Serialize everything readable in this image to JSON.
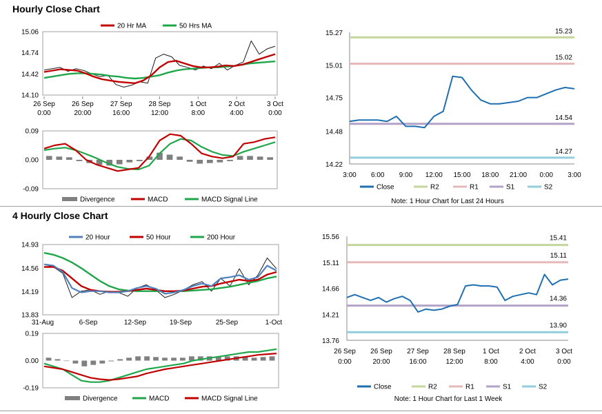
{
  "sections": {
    "hourly_title": "Hourly Close Chart",
    "four_hourly_title": "4 Hourly Close Chart"
  },
  "colors": {
    "price": "#1a1a1a",
    "ma_red": "#c00000",
    "ma_green": "#1fa64a",
    "blue_line": "#4f81bd",
    "close": "#1f6fb0",
    "r2": "#c3d69b",
    "r1": "#e6b9b8",
    "s1": "#b3a2c7",
    "s2": "#92cddc",
    "divergence": "#808080"
  },
  "chart_data": [
    {
      "id": "hourly_price",
      "type": "line",
      "legend": [
        "20 Hr MA",
        "50 Hrs MA"
      ],
      "ylim": [
        14.1,
        15.06
      ],
      "yticks": [
        "15.06",
        "14.74",
        "14.42",
        "14.10"
      ],
      "xticks": [
        "26 Sep\n0:00",
        "26 Sep\n20:00",
        "27 Sep\n16:00",
        "28 Sep\n12:00",
        "1 Oct\n8:00",
        "2 Oct\n4:00",
        "3 Oct\n0:00"
      ],
      "series": [
        {
          "name": "Price",
          "values": [
            14.48,
            14.5,
            14.52,
            14.46,
            14.5,
            14.47,
            14.42,
            14.38,
            14.4,
            14.26,
            14.22,
            14.25,
            14.3,
            14.28,
            14.66,
            14.72,
            14.68,
            14.55,
            14.52,
            14.48,
            14.54,
            14.5,
            14.58,
            14.48,
            14.55,
            14.6,
            14.92,
            14.72,
            14.8,
            14.84
          ]
        },
        {
          "name": "20 Hr MA",
          "values": [
            14.45,
            14.47,
            14.49,
            14.48,
            14.47,
            14.43,
            14.38,
            14.34,
            14.32,
            14.3,
            14.29,
            14.28,
            14.32,
            14.4,
            14.52,
            14.6,
            14.62,
            14.58,
            14.54,
            14.52,
            14.52,
            14.53,
            14.55,
            14.54,
            14.56,
            14.6,
            14.64,
            14.68,
            14.72
          ]
        },
        {
          "name": "50 Hrs MA",
          "values": [
            14.36,
            14.38,
            14.4,
            14.42,
            14.43,
            14.43,
            14.42,
            14.41,
            14.39,
            14.38,
            14.36,
            14.35,
            14.36,
            14.38,
            14.4,
            14.44,
            14.47,
            14.49,
            14.5,
            14.51,
            14.52,
            14.52,
            14.53,
            14.54,
            14.56,
            14.58,
            14.59,
            14.6,
            14.61
          ]
        }
      ]
    },
    {
      "id": "hourly_macd",
      "type": "line",
      "legend": [
        "Divergence",
        "MACD",
        "MACD Signal Line"
      ],
      "ylim": [
        -0.09,
        0.09
      ],
      "yticks": [
        "0.09",
        "0.00",
        "-0.09"
      ],
      "series": [
        {
          "name": "MACD",
          "values": [
            0.035,
            0.045,
            0.05,
            0.03,
            0.0,
            -0.015,
            -0.025,
            -0.035,
            -0.03,
            -0.025,
            0.01,
            0.06,
            0.08,
            0.075,
            0.05,
            0.02,
            0.01,
            0.005,
            0.01,
            0.05,
            0.055,
            0.065,
            0.07
          ]
        },
        {
          "name": "MACD Signal Line",
          "values": [
            0.03,
            0.035,
            0.038,
            0.03,
            0.018,
            0.005,
            -0.01,
            -0.022,
            -0.028,
            -0.03,
            -0.018,
            0.02,
            0.05,
            0.065,
            0.06,
            0.04,
            0.025,
            0.015,
            0.012,
            0.025,
            0.035,
            0.045,
            0.055
          ]
        },
        {
          "name": "Divergence",
          "values": [
            0.012,
            0.01,
            0.008,
            -0.004,
            -0.01,
            -0.016,
            -0.018,
            -0.014,
            -0.008,
            -0.004,
            0.01,
            0.022,
            0.016,
            0.01,
            -0.006,
            -0.012,
            -0.01,
            -0.008,
            -0.004,
            0.012,
            0.012,
            0.01,
            0.008
          ]
        }
      ]
    },
    {
      "id": "hourly_levels",
      "type": "line",
      "ylim": [
        14.22,
        15.27
      ],
      "yticks": [
        "15.27",
        "15.01",
        "14.75",
        "14.48",
        "14.22"
      ],
      "xticks": [
        "3:00",
        "6:00",
        "9:00",
        "12:00",
        "15:00",
        "18:00",
        "21:00",
        "0:00",
        "3:00"
      ],
      "levels": [
        {
          "name": "R2",
          "value": 15.23,
          "label": "15.23"
        },
        {
          "name": "R1",
          "value": 15.02,
          "label": "15.02"
        },
        {
          "name": "S1",
          "value": 14.54,
          "label": "14.54"
        },
        {
          "name": "S2",
          "value": 14.27,
          "label": "14.27"
        }
      ],
      "series": [
        {
          "name": "Close",
          "values": [
            14.56,
            14.57,
            14.57,
            14.57,
            14.56,
            14.6,
            14.52,
            14.52,
            14.51,
            14.6,
            14.64,
            14.92,
            14.91,
            14.81,
            14.73,
            14.7,
            14.7,
            14.71,
            14.72,
            14.75,
            14.75,
            14.78,
            14.81,
            14.83,
            14.82
          ]
        }
      ],
      "legend": [
        "Close",
        "R2",
        "R1",
        "S1",
        "S2"
      ],
      "note": "Note: 1 Hour Chart for Last 24 Hours"
    },
    {
      "id": "four_hourly_price",
      "type": "line",
      "legend": [
        "20 Hour",
        "50 Hour",
        "200 Hour"
      ],
      "ylim": [
        13.83,
        14.93
      ],
      "yticks": [
        "14.93",
        "14.56",
        "14.19",
        "13.83"
      ],
      "xticks": [
        "31-Aug",
        "6-Sep",
        "12-Sep",
        "19-Sep",
        "25-Sep",
        "1-Oct"
      ],
      "series": [
        {
          "name": "Price",
          "values": [
            14.62,
            14.58,
            14.48,
            14.1,
            14.2,
            14.22,
            14.15,
            14.2,
            14.18,
            14.12,
            14.25,
            14.3,
            14.22,
            14.1,
            14.15,
            14.22,
            14.3,
            14.35,
            14.2,
            14.4,
            14.28,
            14.55,
            14.3,
            14.45,
            14.72,
            14.55
          ]
        },
        {
          "name": "20 Hour",
          "values": [
            14.62,
            14.6,
            14.5,
            14.25,
            14.18,
            14.2,
            14.2,
            14.18,
            14.18,
            14.2,
            14.25,
            14.28,
            14.24,
            14.16,
            14.18,
            14.22,
            14.28,
            14.32,
            14.28,
            14.4,
            14.42,
            14.45,
            14.38,
            14.42,
            14.6,
            14.52
          ]
        },
        {
          "name": "50 Hour",
          "values": [
            14.58,
            14.58,
            14.52,
            14.4,
            14.28,
            14.22,
            14.2,
            14.19,
            14.19,
            14.2,
            14.22,
            14.24,
            14.22,
            14.2,
            14.2,
            14.21,
            14.24,
            14.27,
            14.28,
            14.32,
            14.35,
            14.38,
            14.36,
            14.38,
            14.46,
            14.5
          ]
        },
        {
          "name": "200 Hour",
          "values": [
            14.8,
            14.77,
            14.72,
            14.65,
            14.56,
            14.46,
            14.36,
            14.28,
            14.23,
            14.21,
            14.2,
            14.2,
            14.2,
            14.2,
            14.2,
            14.2,
            14.21,
            14.22,
            14.23,
            14.25,
            14.27,
            14.3,
            14.33,
            14.36,
            14.4,
            14.43
          ]
        }
      ]
    },
    {
      "id": "four_hourly_macd",
      "type": "line",
      "legend": [
        "Divergence",
        "MACD",
        "MACD Signal Line"
      ],
      "ylim": [
        -0.19,
        0.19
      ],
      "yticks": [
        "0.19",
        "0.00",
        "-0.19"
      ],
      "series": [
        {
          "name": "MACD",
          "values": [
            -0.02,
            -0.04,
            -0.06,
            -0.1,
            -0.14,
            -0.15,
            -0.15,
            -0.14,
            -0.12,
            -0.1,
            -0.08,
            -0.06,
            -0.05,
            -0.04,
            -0.03,
            -0.02,
            0.0,
            0.01,
            0.02,
            0.03,
            0.04,
            0.05,
            0.06,
            0.06,
            0.07,
            0.08
          ]
        },
        {
          "name": "MACD Signal Line",
          "values": [
            -0.04,
            -0.05,
            -0.06,
            -0.08,
            -0.1,
            -0.12,
            -0.13,
            -0.135,
            -0.13,
            -0.12,
            -0.11,
            -0.09,
            -0.075,
            -0.06,
            -0.05,
            -0.04,
            -0.03,
            -0.02,
            -0.01,
            0.0,
            0.01,
            0.02,
            0.03,
            0.04,
            0.045,
            0.05
          ]
        },
        {
          "name": "Divergence",
          "values": [
            0.02,
            0.01,
            0.0,
            -0.02,
            -0.04,
            -0.03,
            -0.02,
            -0.005,
            0.01,
            0.02,
            0.03,
            0.03,
            0.025,
            0.02,
            0.02,
            0.02,
            0.03,
            0.03,
            0.03,
            0.03,
            0.03,
            0.03,
            0.03,
            0.02,
            0.025,
            0.03
          ]
        }
      ]
    },
    {
      "id": "four_hourly_levels",
      "type": "line",
      "ylim": [
        13.76,
        15.56
      ],
      "yticks": [
        "15.56",
        "15.11",
        "14.66",
        "14.21",
        "13.76"
      ],
      "xticks": [
        "26 Sep\n0:00",
        "26 Sep\n20:00",
        "27 Sep\n16:00",
        "28 Sep\n12:00",
        "1 Oct\n8:00",
        "2 Oct\n4:00",
        "3 Oct\n0:00"
      ],
      "levels": [
        {
          "name": "R2",
          "value": 15.41,
          "label": "15.41"
        },
        {
          "name": "R1",
          "value": 15.11,
          "label": "15.11"
        },
        {
          "name": "S1",
          "value": 14.36,
          "label": "14.36"
        },
        {
          "name": "S2",
          "value": 13.9,
          "label": "13.90"
        }
      ],
      "series": [
        {
          "name": "Close",
          "values": [
            14.5,
            14.55,
            14.5,
            14.45,
            14.5,
            14.42,
            14.48,
            14.52,
            14.45,
            14.25,
            14.3,
            14.28,
            14.3,
            14.35,
            14.38,
            14.7,
            14.72,
            14.7,
            14.7,
            14.68,
            14.45,
            14.52,
            14.55,
            14.58,
            14.55,
            14.9,
            14.72,
            14.8,
            14.82
          ]
        }
      ],
      "legend": [
        "Close",
        "R2",
        "R1",
        "S1",
        "S2"
      ],
      "note": "Note: 1 Hour Chart for Last 1 Week"
    }
  ]
}
